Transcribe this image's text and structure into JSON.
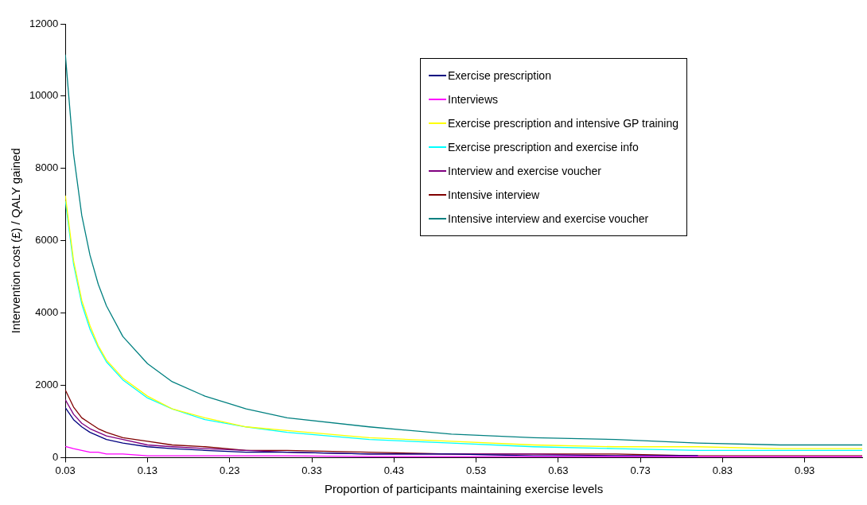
{
  "chart_data": {
    "type": "line",
    "xlabel": "Proportion of participants maintaining exercise levels",
    "ylabel": "Intervention cost (£) / QALY gained",
    "x": [
      0.03,
      0.04,
      0.05,
      0.06,
      0.07,
      0.08,
      0.1,
      0.13,
      0.16,
      0.2,
      0.25,
      0.3,
      0.4,
      0.5,
      0.6,
      0.7,
      0.8,
      0.9,
      1.0
    ],
    "series": [
      {
        "name": "Exercise prescription",
        "color": "#000080",
        "values": [
          1380,
          1050,
          850,
          700,
          600,
          500,
          400,
          300,
          250,
          200,
          150,
          150,
          100,
          100,
          50,
          50,
          50,
          null,
          null
        ]
      },
      {
        "name": "Interviews",
        "color": "#ff00ff",
        "values": [
          310,
          250,
          200,
          150,
          150,
          100,
          100,
          50,
          50,
          50,
          50,
          50,
          30,
          30,
          30,
          30,
          30,
          30,
          30
        ]
      },
      {
        "name": "Exercise prescription and intensive GP training",
        "color": "#ffff00",
        "values": [
          7250,
          5450,
          4350,
          3650,
          3100,
          2700,
          2200,
          1700,
          1350,
          1100,
          850,
          750,
          550,
          450,
          350,
          300,
          300,
          250,
          250
        ]
      },
      {
        "name": "Exercise prescription and exercise info",
        "color": "#00ffff",
        "values": [
          7100,
          5350,
          4250,
          3550,
          3050,
          2650,
          2150,
          1650,
          1350,
          1050,
          850,
          700,
          500,
          400,
          300,
          250,
          200,
          200,
          200
        ]
      },
      {
        "name": "Interview and exercise voucher",
        "color": "#800080",
        "values": [
          1600,
          1200,
          950,
          800,
          700,
          600,
          500,
          350,
          300,
          250,
          200,
          150,
          100,
          100,
          100,
          50,
          50,
          null,
          null
        ]
      },
      {
        "name": "Intensive interview",
        "color": "#800000",
        "values": [
          1870,
          1400,
          1100,
          950,
          800,
          700,
          550,
          450,
          350,
          300,
          200,
          200,
          150,
          100,
          100,
          100,
          50,
          50,
          50
        ]
      },
      {
        "name": "Intensive interview and exercise voucher",
        "color": "#008080",
        "values": [
          11150,
          8400,
          6700,
          5600,
          4800,
          4200,
          3350,
          2600,
          2100,
          1700,
          1350,
          1100,
          850,
          650,
          550,
          500,
          400,
          350,
          350
        ]
      }
    ],
    "xlim": [
      0.03,
      1.0
    ],
    "xticks": [
      0.03,
      0.13,
      0.23,
      0.33,
      0.43,
      0.53,
      0.63,
      0.73,
      0.83,
      0.93
    ],
    "ylim": [
      0,
      12000
    ],
    "yticks": [
      0,
      2000,
      4000,
      6000,
      8000,
      10000,
      12000
    ],
    "grid": false,
    "legend": "top right",
    "marker": "none",
    "line_style": "solid"
  }
}
